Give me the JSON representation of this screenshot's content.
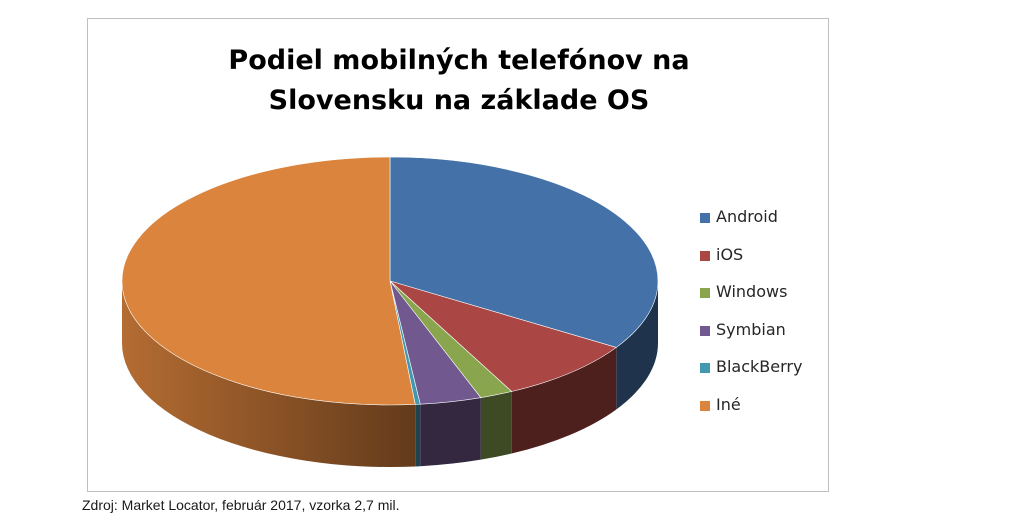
{
  "chart_data": {
    "type": "pie",
    "style": "3d",
    "title_lines": [
      "Podiel mobilných telefónov na",
      "Slovensku na základe OS"
    ],
    "legend_position": "right",
    "slices": [
      {
        "name": "Android",
        "value": 34.0,
        "color": "#4472a8"
      },
      {
        "name": "iOS",
        "value": 8.5,
        "color": "#aa4643"
      },
      {
        "name": "Windows",
        "value": 2.0,
        "color": "#89a54e"
      },
      {
        "name": "Symbian",
        "value": 3.7,
        "color": "#71588f"
      },
      {
        "name": "BlackBerry",
        "value": 0.3,
        "color": "#4198af"
      },
      {
        "name": "Iné",
        "value": 51.5,
        "color": "#db843d"
      }
    ]
  },
  "source_note": "Zdroj: Market Locator, február 2017, vzorka 2,7 mil."
}
